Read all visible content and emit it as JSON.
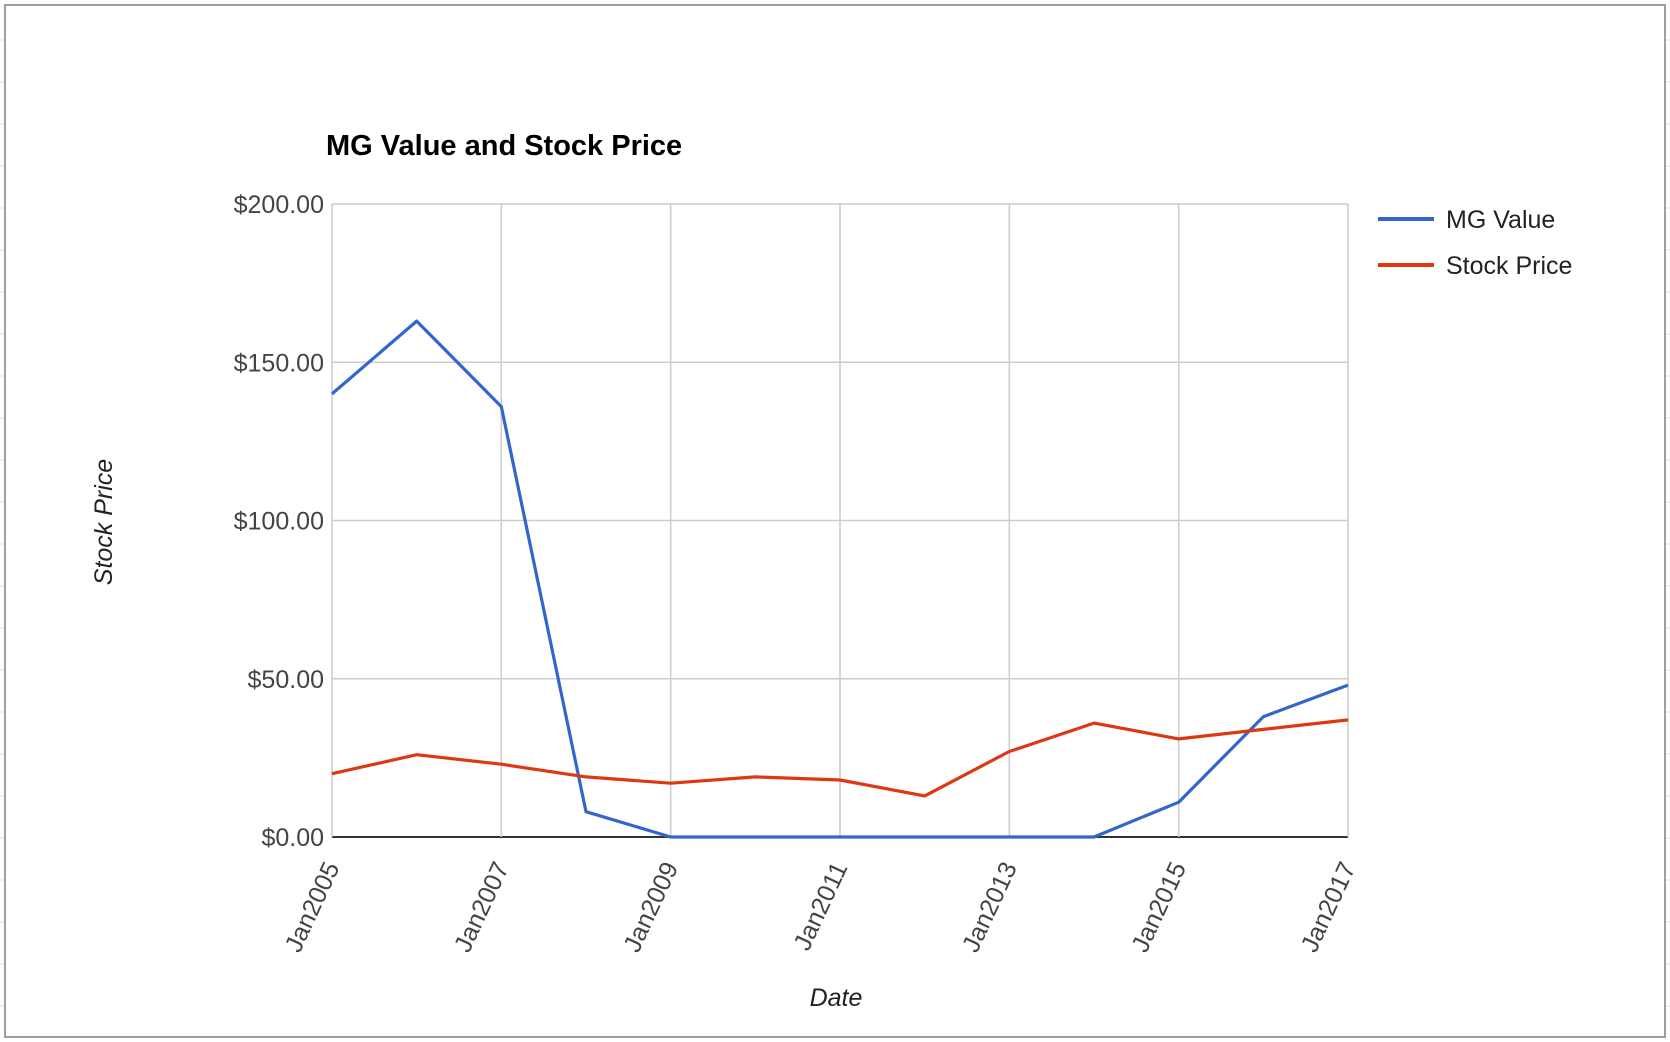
{
  "chart_data": {
    "type": "line",
    "title": "MG Value and Stock Price",
    "xlabel": "Date",
    "ylabel": "Stock Price",
    "x": [
      "Jan2005",
      "Jan2006",
      "Jan2007",
      "Jan2008",
      "Jan2009",
      "Jan2010",
      "Jan2011",
      "Jan2012",
      "Jan2013",
      "Jan2014",
      "Jan2015",
      "Jan2016",
      "Jan2017"
    ],
    "x_tick_labels": [
      "Jan2005",
      "Jan2007",
      "Jan2009",
      "Jan2011",
      "Jan2013",
      "Jan2015",
      "Jan2017"
    ],
    "y_tick_labels": [
      "$0.00",
      "$50.00",
      "$100.00",
      "$150.00",
      "$200.00"
    ],
    "y_ticks": [
      0,
      50,
      100,
      150,
      200
    ],
    "ylim": [
      0,
      200
    ],
    "grid": true,
    "legend_position": "right",
    "series": [
      {
        "name": "MG Value",
        "color": "#3366cc",
        "values": [
          140,
          163,
          136,
          8,
          0,
          0,
          0,
          0,
          0,
          0,
          11,
          38,
          48
        ]
      },
      {
        "name": "Stock Price",
        "color": "#dc3912",
        "values": [
          20,
          26,
          23,
          19,
          17,
          19,
          18,
          13,
          27,
          36,
          31,
          34,
          37
        ]
      }
    ]
  }
}
